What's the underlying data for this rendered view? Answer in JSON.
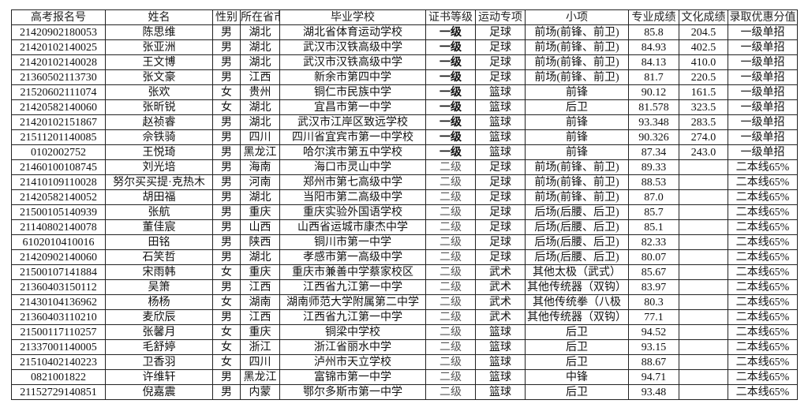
{
  "table": {
    "headers": [
      "高考报名号",
      "姓名",
      "性别",
      "所在省市",
      "毕业学校",
      "证书等级",
      "运动专项",
      "小项",
      "专业成绩",
      "文化成绩",
      "录取优惠分值"
    ],
    "rows": [
      [
        "21420902180053",
        "陈思维",
        "男",
        "湖北",
        "湖北省体育运动学校",
        "一级",
        "足球",
        "前场(前锋、前卫)",
        "85.8",
        "204.5",
        "一级单招"
      ],
      [
        "21420102140025",
        "张亚洲",
        "男",
        "湖北",
        "武汉市汉铁高级中学",
        "一级",
        "足球",
        "前场(前锋、前卫)",
        "84.93",
        "402.5",
        "一级单招"
      ],
      [
        "21420102140028",
        "王文博",
        "男",
        "湖北",
        "武汉市汉铁高级中学",
        "一级",
        "足球",
        "前场(前锋、前卫)",
        "84.13",
        "410.0",
        "一级单招"
      ],
      [
        "21360502113730",
        "张文豪",
        "男",
        "江西",
        "新余市第四中学",
        "一级",
        "足球",
        "前场(前锋、前卫)",
        "81.7",
        "220.5",
        "一级单招"
      ],
      [
        "21520602111074",
        "张欢",
        "女",
        "贵州",
        "铜仁市民族中学",
        "一级",
        "篮球",
        "前锋",
        "90.12",
        "161.5",
        "一级单招"
      ],
      [
        "21420582140060",
        "张昕锐",
        "女",
        "湖北",
        "宜昌市第一中学",
        "一级",
        "篮球",
        "后卫",
        "81.578",
        "323.5",
        "一级单招"
      ],
      [
        "21420102151867",
        "赵祯睿",
        "男",
        "湖北",
        "武汉市江岸区致远学校",
        "一级",
        "篮球",
        "前锋",
        "93.348",
        "283.5",
        "一级单招"
      ],
      [
        "21511201140085",
        "佘铁骑",
        "男",
        "四川",
        "四川省宜宾市第一中学校",
        "一级",
        "篮球",
        "前锋",
        "90.326",
        "274.0",
        "一级单招"
      ],
      [
        "0102002752",
        "王悦琦",
        "男",
        "黑龙江",
        "哈尔滨市第五中学校",
        "一级",
        "篮球",
        "前锋",
        "87.34",
        "243.0",
        "一级单招"
      ],
      [
        "21460100108745",
        "刘光培",
        "男",
        "海南",
        "海口市灵山中学",
        "二级",
        "足球",
        "前场(前锋、前卫)",
        "89.33",
        "",
        "二本线65%"
      ],
      [
        "21410109110028",
        "努尔买买提·克热木",
        "男",
        "河南",
        "郑州市第七高级中学",
        "二级",
        "足球",
        "前场(前锋、前卫)",
        "88.53",
        "",
        "二本线65%"
      ],
      [
        "21420582140052",
        "胡田福",
        "男",
        "湖北",
        "当阳市第二高级中学",
        "二级",
        "足球",
        "前场(前锋、前卫)",
        "87.0",
        "",
        "二本线65%"
      ],
      [
        "21500105140939",
        "张航",
        "男",
        "重庆",
        "重庆实验外国语学校",
        "二级",
        "足球",
        "后场(后腰、后卫)",
        "85.7",
        "",
        "二本线65%"
      ],
      [
        "21140802140078",
        "董佳宸",
        "男",
        "山西",
        "山西省运城市康杰中学",
        "二级",
        "足球",
        "后场(后腰、后卫)",
        "85.1",
        "",
        "二本线65%"
      ],
      [
        "6102010410016",
        "田铭",
        "男",
        "陕西",
        "铜川市第一中学",
        "二级",
        "足球",
        "后场(后腰、后卫)",
        "82.33",
        "",
        "二本线65%"
      ],
      [
        "21420902140060",
        "石笑哲",
        "男",
        "湖北",
        "孝感市第一高级中学",
        "二级",
        "足球",
        "后场(后腰、后卫)",
        "80.07",
        "",
        "二本线65%"
      ],
      [
        "21500107141884",
        "宋雨韩",
        "女",
        "重庆",
        "重庆市兼善中学蔡家校区",
        "二级",
        "武术",
        "其他太极（武式）",
        "85.67",
        "",
        "二本线65%"
      ],
      [
        "21360403150112",
        "吴箫",
        "男",
        "江西",
        "江西省九江第一中学",
        "二级",
        "武术",
        "其他传统器（双钩）",
        "83.97",
        "",
        "二本线65%"
      ],
      [
        "21430104136962",
        "杨杨",
        "女",
        "湖南",
        "湖南师范大学附属第二中学",
        "二级",
        "武术",
        "其他传统拳（八极",
        "80.3",
        "",
        "二本线65%"
      ],
      [
        "21360403110210",
        "麦欣辰",
        "男",
        "江西",
        "江西省九江第一中学",
        "二级",
        "武术",
        "其他传统器（双钩）",
        "77.1",
        "",
        "二本线65%"
      ],
      [
        "21500117110257",
        "张馨月",
        "女",
        "重庆",
        "铜梁中学校",
        "二级",
        "篮球",
        "后卫",
        "94.52",
        "",
        "二本线65%"
      ],
      [
        "21337001140005",
        "毛舒婷",
        "女",
        "浙江",
        "浙江省丽水中学",
        "二级",
        "篮球",
        "后卫",
        "93.15",
        "",
        "二本线65%"
      ],
      [
        "21510402140223",
        "卫香羽",
        "女",
        "四川",
        "泸州市天立学校",
        "二级",
        "篮球",
        "后卫",
        "88.67",
        "",
        "二本线65%"
      ],
      [
        "0821001822",
        "许维轩",
        "男",
        "黑龙江",
        "富锦市第一中学",
        "二级",
        "篮球",
        "中锋",
        "94.71",
        "",
        "二本线65%"
      ],
      [
        "21152729140851",
        "倪嘉震",
        "男",
        "内蒙",
        "鄂尔多斯市第一中学",
        "二级",
        "篮球",
        "后卫",
        "93.48",
        "",
        "二本线65%"
      ]
    ]
  }
}
